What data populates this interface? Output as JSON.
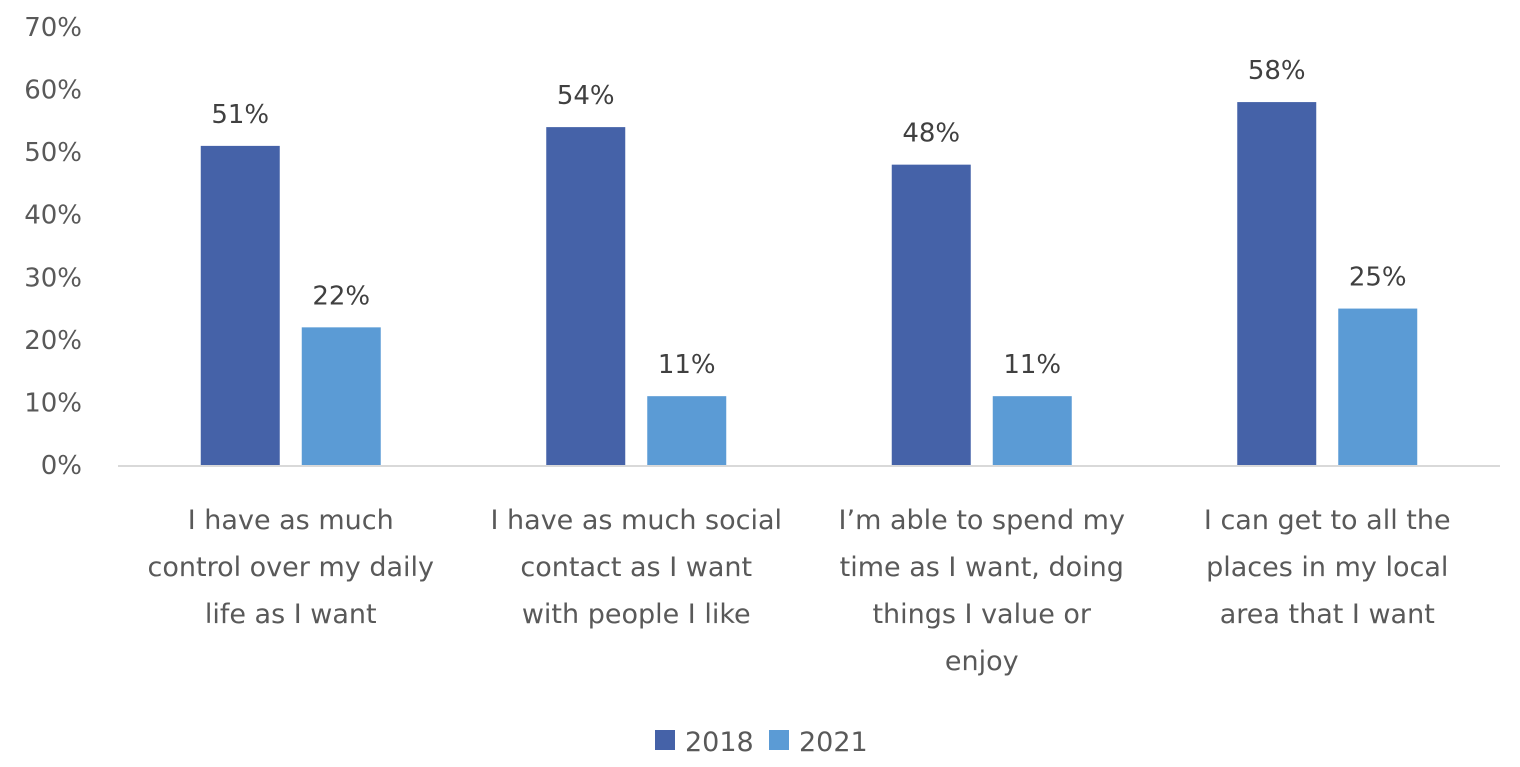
{
  "chart_data": {
    "type": "bar",
    "categories": [
      [
        "I have as much",
        "control over my daily",
        "life as I want"
      ],
      [
        "I have as much social",
        "contact as I want",
        "with people I like"
      ],
      [
        "I’m able to spend my",
        "time as I want, doing",
        "things I value or",
        "enjoy"
      ],
      [
        "I can get to all the",
        "places in my local",
        "area that I want"
      ]
    ],
    "series": [
      {
        "name": "2018",
        "values": [
          51,
          54,
          48,
          58
        ],
        "labels": [
          "51%",
          "54%",
          "48%",
          "58%"
        ],
        "color": "#4562a8"
      },
      {
        "name": "2021",
        "values": [
          22,
          11,
          11,
          25
        ],
        "labels": [
          "22%",
          "11%",
          "11%",
          "25%"
        ],
        "color": "#5b9bd5"
      }
    ],
    "ylim": [
      0,
      70
    ],
    "yticks": [
      "0%",
      "10%",
      "20%",
      "30%",
      "40%",
      "50%",
      "60%",
      "70%"
    ],
    "legend_position": "bottom",
    "grid": false,
    "axis_color": "#d9d9d9"
  }
}
